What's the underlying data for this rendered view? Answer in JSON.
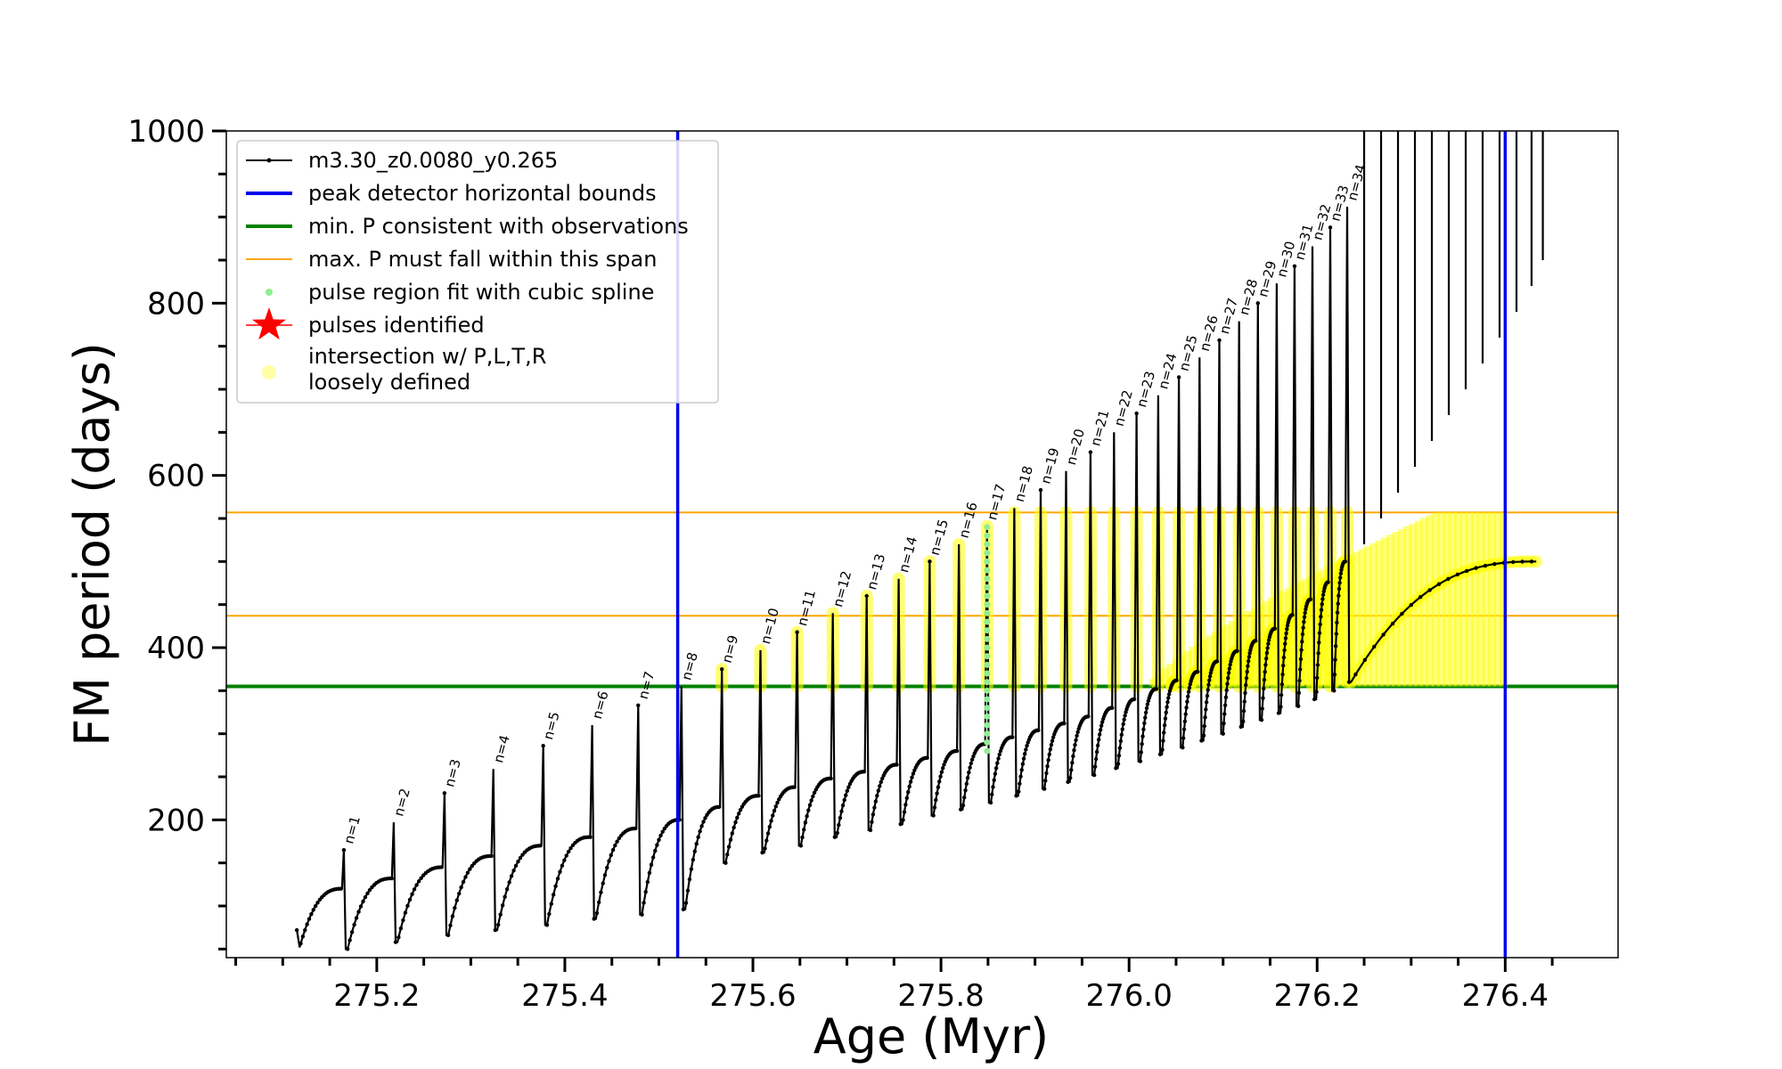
{
  "chart_data": {
    "type": "line",
    "xlabel": "Age (Myr)",
    "ylabel": "FM period (days)",
    "xlim": [
      275.04,
      276.52
    ],
    "ylim": [
      40,
      1000
    ],
    "xticks": [
      275.2,
      275.4,
      275.6,
      275.8,
      276.0,
      276.2,
      276.4
    ],
    "xtick_labels": [
      "275.2",
      "275.4",
      "275.6",
      "275.8",
      "276.0",
      "276.2",
      "276.4"
    ],
    "yticks": [
      200,
      400,
      600,
      800,
      1000
    ],
    "ytick_labels": [
      "200",
      "400",
      "600",
      "800",
      "1000"
    ],
    "grid": false,
    "legend_position": "top-left",
    "legend": [
      {
        "label": "m3.30_z0.0080_y0.265",
        "color": "#000000",
        "marker": "line-dot"
      },
      {
        "label": "peak detector horizontal bounds",
        "color": "#0000ee",
        "marker": "line"
      },
      {
        "label": "min. P consistent with observations",
        "color": "#008000",
        "marker": "line"
      },
      {
        "label": "max. P must fall within this span",
        "color": "#ffa500",
        "marker": "thin-line"
      },
      {
        "label": "pulse region fit with cubic spline",
        "color": "#90ee90",
        "marker": "dot"
      },
      {
        "label": "pulses identified",
        "color": "#ff0000",
        "marker": "star"
      },
      {
        "label": "intersection w/ P,L,T,R",
        "label2": "loosely defined",
        "color": "#ffff66",
        "marker": "circle"
      }
    ],
    "vertical_lines": [
      {
        "x": 275.52,
        "color": "#0000ee"
      },
      {
        "x": 276.4,
        "color": "#0000ee"
      }
    ],
    "horizontal_lines": [
      {
        "y": 355,
        "color": "#008000"
      },
      {
        "y": 437,
        "color": "#ffa500"
      },
      {
        "y": 557,
        "color": "#ffa500"
      }
    ],
    "pulses": [
      {
        "n": "n=1",
        "age": 275.165,
        "peak": 165,
        "min": 50
      },
      {
        "n": "n=2",
        "age": 275.218,
        "peak": 197,
        "min": 58
      },
      {
        "n": "n=3",
        "age": 275.272,
        "peak": 231,
        "min": 66
      },
      {
        "n": "n=4",
        "age": 275.324,
        "peak": 259,
        "min": 72
      },
      {
        "n": "n=5",
        "age": 275.377,
        "peak": 286,
        "min": 78
      },
      {
        "n": "n=6",
        "age": 275.429,
        "peak": 310,
        "min": 85
      },
      {
        "n": "n=7",
        "age": 275.478,
        "peak": 333,
        "min": 90
      },
      {
        "n": "n=8",
        "age": 275.524,
        "peak": 355,
        "min": 96
      },
      {
        "n": "n=9",
        "age": 275.567,
        "peak": 375,
        "min": 150
      },
      {
        "n": "n=10",
        "age": 275.608,
        "peak": 397,
        "min": 162
      },
      {
        "n": "n=11",
        "age": 275.647,
        "peak": 418,
        "min": 170
      },
      {
        "n": "n=12",
        "age": 275.685,
        "peak": 440,
        "min": 180
      },
      {
        "n": "n=13",
        "age": 275.721,
        "peak": 460,
        "min": 188
      },
      {
        "n": "n=14",
        "age": 275.755,
        "peak": 480,
        "min": 195
      },
      {
        "n": "n=15",
        "age": 275.788,
        "peak": 500,
        "min": 205
      },
      {
        "n": "n=16",
        "age": 275.819,
        "peak": 520,
        "min": 212
      },
      {
        "n": "n=17",
        "age": 275.849,
        "peak": 541,
        "min": 220
      },
      {
        "n": "n=18",
        "age": 275.878,
        "peak": 562,
        "min": 228
      },
      {
        "n": "n=19",
        "age": 275.906,
        "peak": 583,
        "min": 236
      },
      {
        "n": "n=20",
        "age": 275.933,
        "peak": 605,
        "min": 244
      },
      {
        "n": "n=21",
        "age": 275.959,
        "peak": 627,
        "min": 252
      },
      {
        "n": "n=22",
        "age": 275.984,
        "peak": 650,
        "min": 260
      },
      {
        "n": "n=23",
        "age": 276.008,
        "peak": 672,
        "min": 268
      },
      {
        "n": "n=24",
        "age": 276.031,
        "peak": 693,
        "min": 276
      },
      {
        "n": "n=25",
        "age": 276.053,
        "peak": 714,
        "min": 284
      },
      {
        "n": "n=26",
        "age": 276.075,
        "peak": 737,
        "min": 292
      },
      {
        "n": "n=27",
        "age": 276.096,
        "peak": 757,
        "min": 300
      },
      {
        "n": "n=28",
        "age": 276.117,
        "peak": 779,
        "min": 308
      },
      {
        "n": "n=29",
        "age": 276.137,
        "peak": 800,
        "min": 316
      },
      {
        "n": "n=30",
        "age": 276.157,
        "peak": 823,
        "min": 324
      },
      {
        "n": "n=31",
        "age": 276.176,
        "peak": 843,
        "min": 332
      },
      {
        "n": "n=32",
        "age": 276.195,
        "peak": 866,
        "min": 340
      },
      {
        "n": "n=33",
        "age": 276.214,
        "peak": 888,
        "min": 350
      },
      {
        "n": "n=34",
        "age": 276.232,
        "peak": 912,
        "min": 360
      }
    ]
  }
}
